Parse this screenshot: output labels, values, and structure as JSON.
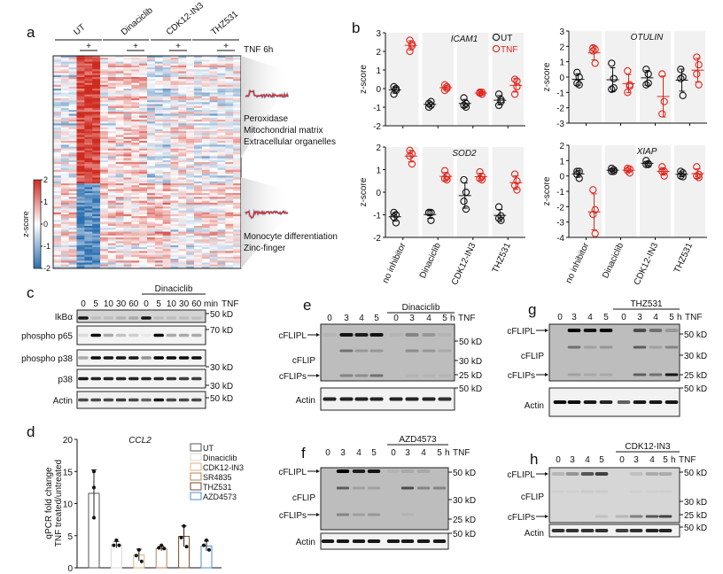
{
  "panel_letters": {
    "a": "a",
    "b": "b",
    "c": "c",
    "d": "d",
    "e": "e",
    "f": "f",
    "g": "g",
    "h": "h"
  },
  "chart_data": [
    {
      "panel": "a",
      "type": "heatmap",
      "column_groups": [
        "UT",
        "Dinaciclib",
        "CDK12-IN3",
        "THZ531"
      ],
      "treatment_mark": "+",
      "treatment_label": "TNF 6h",
      "colorbar": {
        "label": "z-score",
        "ticks": [
          "2",
          "1",
          "0",
          "-1",
          "-2"
        ],
        "range": [
          -2,
          2
        ],
        "low_color": "#2c6fb0",
        "mid_color": "#ffffff",
        "high_color": "#cf2a1f"
      },
      "clusters": [
        {
          "annotations": [
            "Peroxidase",
            "Mitochondrial matrix",
            "Extracellular organelles"
          ],
          "mean_z_untreated": [
            -0.2,
            0.2,
            -0.3,
            -0.2
          ],
          "mean_z_tnf": [
            1.8,
            0.3,
            0.1,
            -0.1
          ]
        },
        {
          "annotations": [
            "Monocyte differentiation",
            "Zinc-finger"
          ],
          "mean_z_untreated": [
            0.2,
            0.3,
            0.5,
            0.2
          ],
          "mean_z_tnf": [
            -1.6,
            0.3,
            0.0,
            0.2
          ]
        }
      ]
    },
    {
      "panel": "b",
      "type": "scatter",
      "categories": [
        "no inhibitor",
        "Dinaciclib",
        "CDK12-IN3",
        "THZ531"
      ],
      "ylabel": "z-score",
      "legend": [
        {
          "name": "UT",
          "color": "#111111"
        },
        {
          "name": "TNF",
          "color": "#e0251b"
        }
      ],
      "legend_placement": "top-right of ICAM1",
      "plots": [
        {
          "gene": "ICAM1",
          "ylim": [
            -2,
            3
          ],
          "ticks": [
            "3",
            "2",
            "1",
            "0",
            "-1",
            "-2"
          ],
          "UT": [
            [
              0.1,
              -0.1,
              -0.3,
              0.0
            ],
            [
              -0.8,
              -0.9,
              -1.0,
              -0.7
            ],
            [
              -0.5,
              -0.8,
              -0.9,
              -1.0
            ],
            [
              -0.3,
              -0.6,
              -0.9,
              -0.7
            ]
          ],
          "TNF": [
            [
              2.6,
              2.4,
              2.0,
              2.3
            ],
            [
              0.2,
              0.0,
              -0.1,
              0.1
            ],
            [
              -0.2,
              -0.3,
              -0.25,
              -0.2
            ],
            [
              0.5,
              0.4,
              -0.3,
              0.1
            ]
          ]
        },
        {
          "gene": "OTULIN",
          "ylim": [
            -3,
            3
          ],
          "ticks": [
            "3",
            "2",
            "1",
            "0",
            "-1",
            "-2",
            "-3"
          ],
          "UT": [
            [
              0.3,
              0.0,
              -0.4,
              -0.5
            ],
            [
              0.9,
              -0.1,
              -0.8,
              -0.7
            ],
            [
              0.5,
              0.2,
              -0.5,
              -0.4
            ],
            [
              0.5,
              0.0,
              -0.1,
              -1.2
            ]
          ],
          "TNF": [
            [
              1.9,
              1.8,
              1.7,
              0.9
            ],
            [
              0.4,
              -0.5,
              -1.0,
              -0.6
            ],
            [
              0.2,
              -1.6,
              -2.4
            ],
            [
              1.3,
              0.8,
              0.2,
              -0.5
            ]
          ]
        },
        {
          "gene": "SOD2",
          "ylim": [
            -2,
            2
          ],
          "ticks": [
            "2",
            "1",
            "0",
            "-1",
            "-2"
          ],
          "UT": [
            [
              -0.9,
              -1.0,
              -1.1,
              -1.35
            ],
            [
              -0.9,
              -0.9,
              -0.9,
              -1.25
            ],
            [
              0.55,
              0.0,
              -0.4,
              -0.75
            ],
            [
              -0.65,
              -1.05,
              -1.15,
              -1.25
            ]
          ],
          "TNF": [
            [
              1.85,
              1.7,
              1.6,
              1.25
            ],
            [
              0.95,
              0.7,
              0.6,
              0.55
            ],
            [
              0.9,
              0.7,
              0.6,
              0.55
            ],
            [
              0.8,
              0.5,
              0.3,
              0.1
            ]
          ]
        },
        {
          "gene": "XIAP",
          "ylim": [
            -4,
            2
          ],
          "ticks": [
            "2",
            "1",
            "0",
            "-1",
            "-2",
            "-3",
            "-4"
          ],
          "UT": [
            [
              0.3,
              0.3,
              0.1,
              -0.15
            ],
            [
              0.5,
              0.4,
              0.3,
              0.3
            ],
            [
              1.0,
              0.8,
              0.75,
              0.75
            ],
            [
              0.3,
              0.2,
              0.0,
              -0.05
            ]
          ],
          "TNF": [
            [
              -0.9,
              -2.2,
              -2.5,
              -3.75
            ],
            [
              0.5,
              0.45,
              0.35,
              0.2
            ],
            [
              0.6,
              0.3,
              0.3,
              0.0
            ],
            [
              0.6,
              0.1,
              0.0,
              -0.1
            ]
          ]
        }
      ]
    },
    {
      "panel": "d",
      "type": "bar",
      "title": "CCL2",
      "ylabel_line1": "qPCR fold change",
      "ylabel_line2": "TNF treated/untreated",
      "ylim": [
        0,
        20
      ],
      "yticks": [
        "20",
        "15",
        "10",
        "5",
        "0"
      ],
      "categories": [
        "UT",
        "Dinaciclib",
        "CDK12-IN3",
        "SR4835",
        "THZ531",
        "AZD4573"
      ],
      "colors": [
        "#555555",
        "#d8d8d8",
        "#e0b27a",
        "#b5835a",
        "#7a4a26",
        "#4a8fd4"
      ],
      "values": [
        11.6,
        3.6,
        2.0,
        3.0,
        4.9,
        3.4
      ],
      "points": [
        [
          15.0,
          12.5,
          7.8
        ],
        [
          4.3,
          3.5,
          3.5
        ],
        [
          2.8,
          1.9,
          1.0
        ],
        [
          3.5,
          3.1,
          3.0
        ],
        [
          6.5,
          4.7,
          3.3
        ],
        [
          4.3,
          3.5,
          2.8
        ]
      ],
      "legend_placement": "top-right"
    }
  ],
  "blots": {
    "c": {
      "treatment_group": "Dinaciclib",
      "lanes": [
        "0",
        "5",
        "10",
        "30",
        "60",
        "0",
        "5",
        "10",
        "30",
        "60"
      ],
      "unit": "min",
      "treatment": "TNF",
      "rows": [
        {
          "label": "IkBα",
          "bands": [
            0.9,
            0.1,
            0.1,
            0.15,
            0.2,
            0.9,
            0.1,
            0.1,
            0.1,
            0.1
          ]
        },
        {
          "label": "phospho p65",
          "bands": [
            0.1,
            0.95,
            0.3,
            0.2,
            0.15,
            0.05,
            0.95,
            0.3,
            0.3,
            0.3
          ]
        },
        {
          "label": "phospho p38",
          "bands": [
            0.3,
            0.95,
            0.9,
            0.9,
            0.9,
            0.4,
            1,
            0.95,
            0.95,
            0.95
          ]
        },
        {
          "label": "p38",
          "bands": [
            0.9,
            0.85,
            0.85,
            0.85,
            0.85,
            0.85,
            0.85,
            0.8,
            0.75,
            0.75
          ]
        },
        {
          "label": "Actin",
          "bands": [
            0.7,
            0.7,
            0.7,
            0.75,
            0.7,
            0.6,
            0.9,
            0.7,
            0.7,
            0.7
          ]
        }
      ],
      "markers": [
        "50 kD",
        "70 kD",
        "30 kD",
        "30 kD",
        "50 kD"
      ]
    },
    "e": {
      "treatment_group": "Dinaciclib",
      "lanes": [
        "0",
        "3",
        "4",
        "5",
        "0",
        "3",
        "4",
        "5"
      ],
      "unit": "h",
      "treatment": "TNF",
      "labels": [
        "cFLIPL",
        "cFLIP",
        "cFLIPs",
        "Actin"
      ],
      "bands": {
        "long": [
          0.05,
          0.9,
          0.85,
          0.9,
          0.05,
          0.3,
          0.2,
          0.05
        ],
        "mid": [
          0,
          0.4,
          0.2,
          0.2,
          0,
          0.25,
          0.2,
          0.1
        ],
        "short": [
          0,
          0.3,
          0.25,
          0.4,
          0,
          0.05,
          0.05,
          0.05
        ],
        "actin": [
          0.85,
          0.85,
          0.85,
          0.85,
          0.85,
          0.85,
          0.85,
          0.8
        ]
      },
      "markers": [
        "50 kD",
        "30 kD",
        "25 kD",
        "50 kD"
      ]
    },
    "g": {
      "treatment_group": "THZ531",
      "lanes": [
        "0",
        "3",
        "4",
        "5",
        "0",
        "3",
        "4",
        "5"
      ],
      "unit": "h",
      "treatment": "TNF",
      "labels": [
        "cFLIPL",
        "cFLIP",
        "cFLIPs",
        "Actin"
      ],
      "bands": {
        "long": [
          0,
          1,
          0.9,
          0.95,
          0,
          0.6,
          0.4,
          0.2
        ],
        "mid": [
          0,
          0.4,
          0.15,
          0.2,
          0,
          0.5,
          0.15,
          0.3
        ],
        "short": [
          0,
          0.15,
          0.1,
          0.1,
          0,
          0.5,
          0.4,
          0.9
        ],
        "actin": [
          0.95,
          0.95,
          0.9,
          0.85,
          0.6,
          0.9,
          0.9,
          0.9
        ]
      },
      "markers": [
        "50 kD",
        "30 kD",
        "25 kD",
        "50 kD"
      ]
    },
    "f": {
      "treatment_group": "AZD4573",
      "lanes": [
        "0",
        "3",
        "4",
        "5",
        "0",
        "3",
        "4",
        "5"
      ],
      "unit": "h",
      "treatment": "TNF",
      "labels": [
        "cFLIPL",
        "cFLIP",
        "cFLIPs",
        "Actin"
      ],
      "bands": {
        "long": [
          0,
          1,
          0.85,
          0.9,
          0.05,
          0.1,
          0.1,
          0
        ],
        "mid": [
          0,
          0.5,
          0.15,
          0.15,
          0,
          0.6,
          0.3,
          0.3
        ],
        "short": [
          0,
          0.3,
          0.15,
          0.2,
          0,
          0.05,
          0,
          0
        ],
        "actin": [
          0.9,
          0.9,
          0.9,
          0.9,
          0.9,
          0.9,
          0.9,
          0.9
        ]
      },
      "markers": [
        "50 kD",
        "30 kD",
        "25 kD",
        "50 kD"
      ]
    },
    "h": {
      "treatment_group": "CDK12-IN3",
      "lanes": [
        "0",
        "3",
        "4",
        "5",
        "0",
        "3",
        "4",
        "5"
      ],
      "unit": "h",
      "treatment": "TNF",
      "labels": [
        "cFLIPL",
        "cFLIP",
        "cFLIPs",
        "Actin"
      ],
      "bands": {
        "long": [
          0.15,
          0.3,
          0.6,
          0.7,
          0,
          0.1,
          0.2,
          0.2
        ],
        "mid": [
          0.03,
          0.03,
          0.05,
          0.05,
          0,
          0.03,
          0.03,
          0.03
        ],
        "short": [
          0,
          0,
          0,
          0.1,
          0.15,
          0.4,
          0.6,
          0.7
        ],
        "actin": [
          0.8,
          0.8,
          0.8,
          0.8,
          0.75,
          0.8,
          0.85,
          0.85
        ]
      },
      "markers": [
        "50 kD",
        "30 kD",
        "25 kD",
        "50 kD"
      ]
    }
  }
}
